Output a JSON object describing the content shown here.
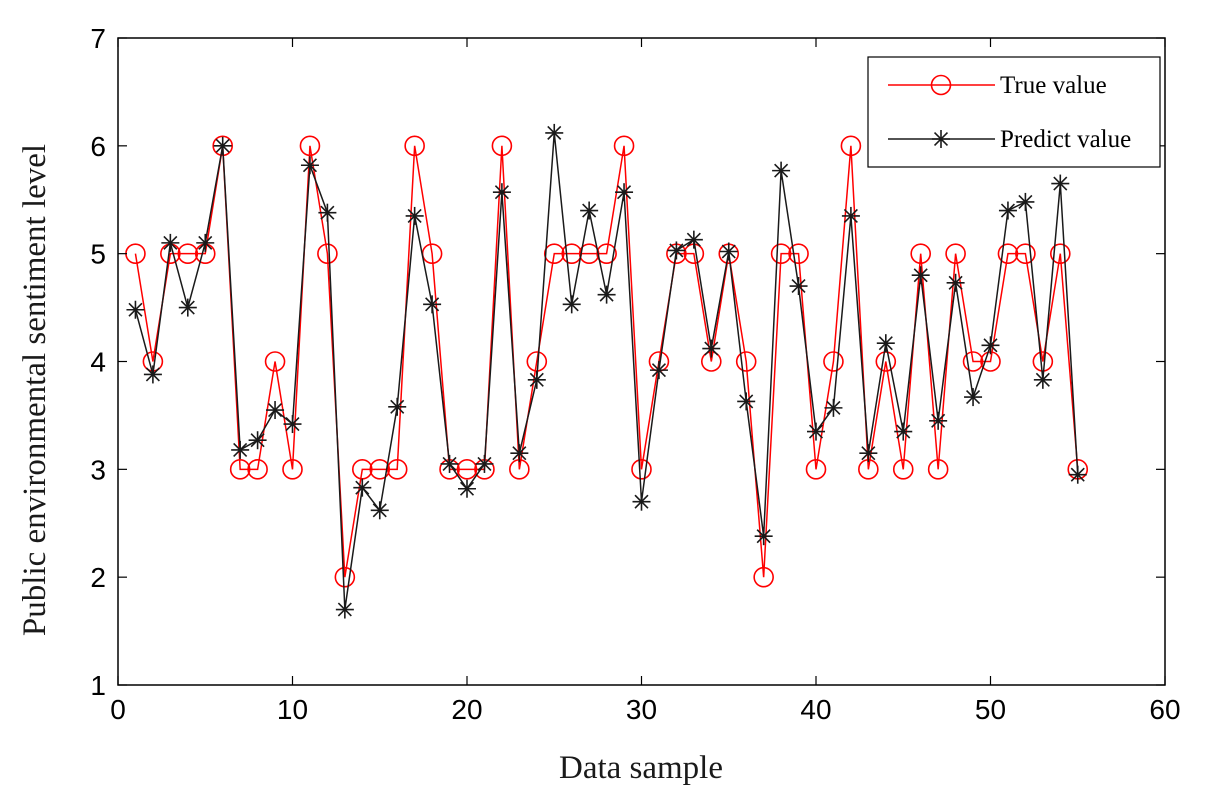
{
  "chart_data": {
    "type": "line",
    "title": "",
    "xlabel": "Data sample",
    "ylabel": "Public environmental sentiment level",
    "xlim": [
      0,
      60
    ],
    "ylim": [
      1,
      7
    ],
    "xticks": [
      0,
      10,
      20,
      30,
      40,
      50,
      60
    ],
    "yticks": [
      1,
      2,
      3,
      4,
      5,
      6,
      7
    ],
    "grid": false,
    "legend_position": "top-right",
    "x": [
      1,
      2,
      3,
      4,
      5,
      6,
      7,
      8,
      9,
      10,
      11,
      12,
      13,
      14,
      15,
      16,
      17,
      18,
      19,
      20,
      21,
      22,
      23,
      24,
      25,
      26,
      27,
      28,
      29,
      30,
      31,
      32,
      33,
      34,
      35,
      36,
      37,
      38,
      39,
      40,
      41,
      42,
      43,
      44,
      45,
      46,
      47,
      48,
      49,
      50,
      51,
      52,
      53,
      54,
      55
    ],
    "series": [
      {
        "name": "True value",
        "color": "#ff0000",
        "marker": "circle",
        "values": [
          5,
          4,
          5,
          5,
          5,
          6,
          3,
          3,
          4,
          3,
          6,
          5,
          2,
          3,
          3,
          3,
          6,
          5,
          3,
          3,
          3,
          6,
          3,
          4,
          5,
          5,
          5,
          5,
          6,
          3,
          4,
          5,
          5,
          4,
          5,
          4,
          2,
          5,
          5,
          3,
          4,
          6,
          3,
          4,
          3,
          5,
          3,
          5,
          4,
          4,
          5,
          5,
          4,
          5,
          3
        ]
      },
      {
        "name": "Predict value",
        "color": "#1a1a1a",
        "marker": "asterisk",
        "values": [
          4.48,
          3.88,
          5.1,
          4.5,
          5.1,
          6.0,
          3.18,
          3.27,
          3.55,
          3.42,
          5.82,
          5.38,
          1.7,
          2.83,
          2.62,
          3.58,
          5.35,
          4.53,
          3.05,
          2.82,
          3.05,
          5.57,
          3.15,
          3.83,
          6.12,
          4.53,
          5.4,
          4.62,
          5.57,
          2.7,
          3.92,
          5.03,
          5.13,
          4.12,
          5.02,
          3.63,
          2.38,
          5.77,
          4.7,
          3.35,
          3.57,
          5.35,
          3.15,
          4.17,
          3.35,
          4.8,
          3.45,
          4.73,
          3.67,
          4.15,
          5.4,
          5.48,
          3.83,
          5.65,
          2.95
        ]
      }
    ]
  }
}
